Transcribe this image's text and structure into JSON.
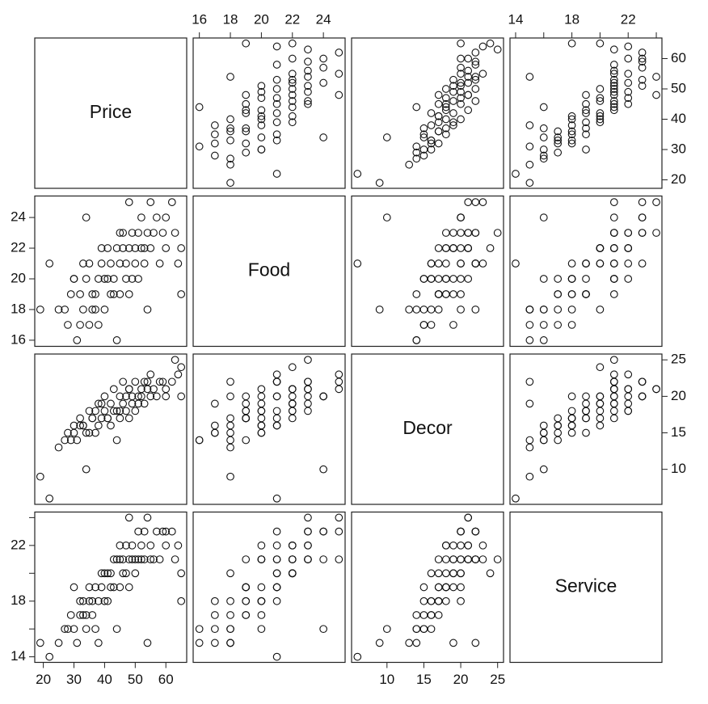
{
  "chart_data": {
    "type": "scatter_matrix",
    "variables": [
      {
        "name": "Price",
        "lim": [
          17.2,
          66.8
        ],
        "ticks": [
          20,
          30,
          40,
          50,
          60
        ]
      },
      {
        "name": "Food",
        "lim": [
          15.6,
          25.4
        ],
        "ticks": [
          16,
          18,
          20,
          22,
          24
        ]
      },
      {
        "name": "Decor",
        "lim": [
          5.2,
          25.8
        ],
        "ticks": [
          10,
          15,
          20,
          25
        ]
      },
      {
        "name": "Service",
        "lim": [
          13.6,
          24.4
        ],
        "ticks": [
          14,
          18,
          22
        ],
        "minor_ticks": [
          16,
          20,
          24
        ]
      }
    ],
    "observations": [
      [
        19,
        18,
        9,
        15
      ],
      [
        22,
        21,
        6,
        14
      ],
      [
        25,
        18,
        13,
        15
      ],
      [
        28,
        17,
        15,
        16
      ],
      [
        29,
        19,
        14,
        17
      ],
      [
        30,
        20,
        16,
        16
      ],
      [
        31,
        16,
        14,
        15
      ],
      [
        32,
        19,
        17,
        18
      ],
      [
        33,
        18,
        16,
        17
      ],
      [
        34,
        20,
        15,
        17
      ],
      [
        34,
        24,
        10,
        16
      ],
      [
        35,
        17,
        15,
        18
      ],
      [
        36,
        18,
        17,
        18
      ],
      [
        37,
        19,
        18,
        19
      ],
      [
        38,
        20,
        16,
        18
      ],
      [
        38,
        17,
        19,
        15
      ],
      [
        39,
        21,
        17,
        19
      ],
      [
        40,
        18,
        20,
        20
      ],
      [
        40,
        20,
        18,
        18
      ],
      [
        41,
        22,
        17,
        20
      ],
      [
        42,
        19,
        19,
        19
      ],
      [
        42,
        21,
        16,
        20
      ],
      [
        43,
        20,
        21,
        21
      ],
      [
        44,
        16,
        14,
        16
      ],
      [
        44,
        22,
        18,
        21
      ],
      [
        45,
        21,
        20,
        19
      ],
      [
        45,
        19,
        17,
        21
      ],
      [
        46,
        22,
        19,
        20
      ],
      [
        46,
        23,
        22,
        21
      ],
      [
        47,
        20,
        18,
        22
      ],
      [
        47,
        21,
        20,
        20
      ],
      [
        48,
        22,
        21,
        21
      ],
      [
        48,
        19,
        17,
        19
      ],
      [
        49,
        23,
        19,
        22
      ],
      [
        49,
        20,
        20,
        21
      ],
      [
        50,
        21,
        22,
        21
      ],
      [
        50,
        22,
        18,
        20
      ],
      [
        51,
        23,
        20,
        23
      ],
      [
        51,
        20,
        19,
        21
      ],
      [
        52,
        22,
        21,
        22
      ],
      [
        52,
        24,
        20,
        21
      ],
      [
        53,
        21,
        22,
        23
      ],
      [
        53,
        22,
        19,
        21
      ],
      [
        54,
        18,
        22,
        15
      ],
      [
        54,
        23,
        21,
        24
      ],
      [
        55,
        25,
        23,
        21
      ],
      [
        55,
        22,
        20,
        22
      ],
      [
        56,
        23,
        21,
        21
      ],
      [
        57,
        24,
        20,
        23
      ],
      [
        58,
        21,
        22,
        21
      ],
      [
        59,
        23,
        22,
        23
      ],
      [
        60,
        22,
        21,
        22
      ],
      [
        62,
        25,
        22,
        23
      ],
      [
        63,
        23,
        25,
        21
      ],
      [
        64,
        21,
        23,
        22
      ],
      [
        65,
        19,
        20,
        18
      ],
      [
        65,
        22,
        24,
        20
      ],
      [
        30,
        20,
        15,
        19
      ],
      [
        32,
        17,
        16,
        17
      ],
      [
        35,
        21,
        18,
        19
      ],
      [
        37,
        18,
        15,
        16
      ],
      [
        39,
        22,
        19,
        20
      ],
      [
        41,
        20,
        17,
        18
      ],
      [
        43,
        19,
        18,
        19
      ],
      [
        45,
        23,
        18,
        22
      ],
      [
        27,
        18,
        14,
        16
      ],
      [
        33,
        21,
        16,
        18
      ],
      [
        36,
        19,
        17,
        17
      ],
      [
        60,
        24,
        20,
        23
      ],
      [
        48,
        25,
        21,
        24
      ]
    ]
  }
}
